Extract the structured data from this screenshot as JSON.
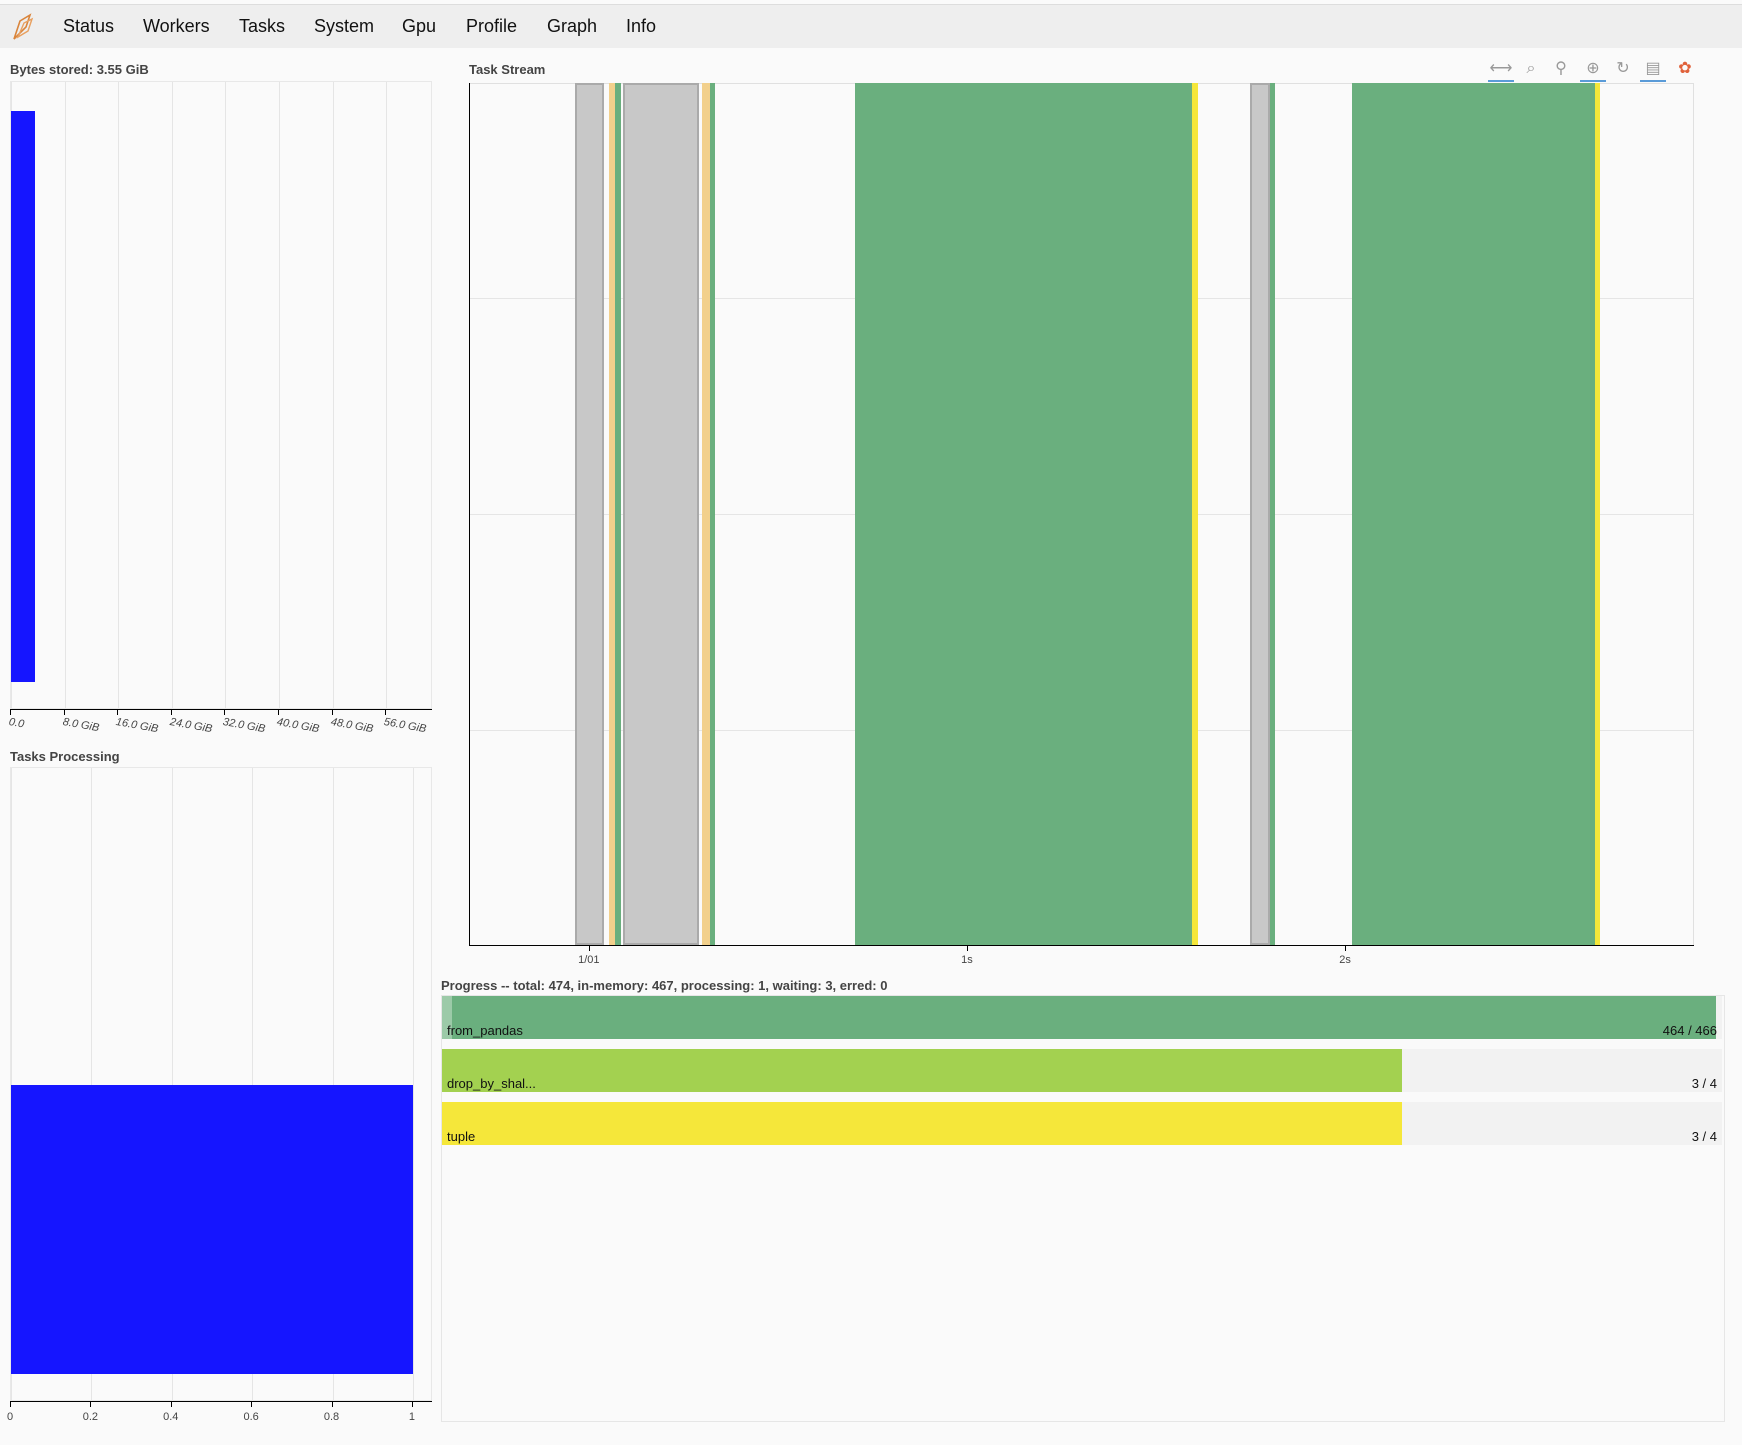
{
  "nav": {
    "items": [
      "Status",
      "Workers",
      "Tasks",
      "System",
      "Gpu",
      "Profile",
      "Graph",
      "Info"
    ]
  },
  "bytes_stored": {
    "title": "Bytes stored: 3.55 GiB",
    "chart_data": {
      "type": "bar",
      "orientation": "horizontal",
      "values": [
        3.55
      ],
      "unit": "GiB",
      "xlim": [
        0,
        63
      ],
      "tick_labels": [
        "0.0",
        "8.0 GiB",
        "16.0 GiB",
        "24.0 GiB",
        "32.0 GiB",
        "40.0 GiB",
        "48.0 GiB",
        "56.0 GiB"
      ],
      "ticks": [
        0,
        8,
        16,
        24,
        32,
        40,
        48,
        56
      ],
      "bar_color": "#1515ff",
      "grid": true
    }
  },
  "tasks_processing": {
    "title": "Tasks Processing",
    "chart_data": {
      "type": "bar",
      "orientation": "horizontal",
      "values": [
        1
      ],
      "xlim": [
        0,
        1.05
      ],
      "ticks": [
        0,
        0.2,
        0.4,
        0.6,
        0.8,
        1
      ],
      "tick_labels": [
        "0",
        "0.2",
        "0.4",
        "0.6",
        "0.8",
        "1"
      ],
      "bar_color": "#1515ff",
      "grid": true
    }
  },
  "task_stream": {
    "title": "Task Stream",
    "toolbar": [
      "pan-icon",
      "box-zoom-icon",
      "wheel-zoom-icon",
      "zoom-in-icon",
      "reset-icon",
      "hover-icon",
      "bokeh-logo-icon"
    ],
    "chart_data": {
      "type": "bar",
      "xlim": [
        -0.317,
        2.923
      ],
      "ticks": [
        0,
        1,
        2
      ],
      "tick_labels": [
        "1/01",
        "1s",
        "2s"
      ],
      "segments": [
        {
          "start": -0.04,
          "end": 0.037,
          "color": "#c8c8c8"
        },
        {
          "start": 0.05,
          "end": 0.066,
          "color": "#f2d08c"
        },
        {
          "start": 0.066,
          "end": 0.082,
          "color": "#6aaf7e"
        },
        {
          "start": 0.087,
          "end": 0.288,
          "color": "#c8c8c8"
        },
        {
          "start": 0.296,
          "end": 0.317,
          "color": "#f2d08c"
        },
        {
          "start": 0.317,
          "end": 0.331,
          "color": "#6aaf7e"
        },
        {
          "start": 0.701,
          "end": 1.593,
          "color": "#6aaf7e"
        },
        {
          "start": 1.593,
          "end": 1.608,
          "color": "#f5e73a"
        },
        {
          "start": 1.746,
          "end": 1.799,
          "color": "#c8c8c8"
        },
        {
          "start": 1.799,
          "end": 1.812,
          "color": "#6aaf7e"
        },
        {
          "start": 2.016,
          "end": 2.659,
          "color": "#6aaf7e"
        },
        {
          "start": 2.659,
          "end": 2.672,
          "color": "#f5e73a"
        }
      ],
      "grid": true
    }
  },
  "progress": {
    "title": "Progress -- total: 474, in-memory: 467, processing: 1, waiting: 3, erred: 0",
    "rows": [
      {
        "name": "from_pandas",
        "count": "464 / 466",
        "fraction": 0.9957,
        "released_fraction": 0.005,
        "color": "#6aaf7e"
      },
      {
        "name": "drop_by_shal...",
        "count": "3 / 4",
        "fraction": 0.75,
        "color": "#a3d150"
      },
      {
        "name": "tuple",
        "count": "3 / 4",
        "fraction": 0.75,
        "color": "#f5e73a"
      }
    ]
  }
}
